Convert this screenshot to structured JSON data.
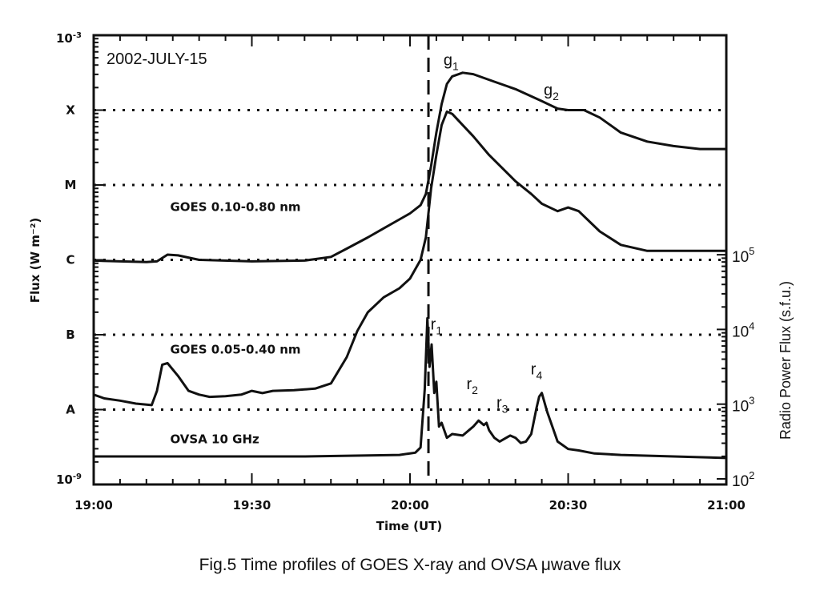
{
  "chart_data": {
    "type": "line",
    "title": "2002-JULY-15",
    "xlabel": "Time (UT)",
    "ylabel": "Flux (W m⁻²)",
    "ylabel_right": "Radio Power Flux (s.f.u.)",
    "x_ticks": [
      "19:00",
      "19:30",
      "20:00",
      "20:30",
      "21:00"
    ],
    "x_range_minutes": [
      0,
      120
    ],
    "y_left_scale": "log",
    "y_left_range": [
      "1e-9",
      "1e-3"
    ],
    "y_left_ticks": [
      {
        "label": "A",
        "value": "1e-8"
      },
      {
        "label": "B",
        "value": "1e-7"
      },
      {
        "label": "C",
        "value": "1e-6"
      },
      {
        "label": "M",
        "value": "1e-5"
      },
      {
        "label": "X",
        "value": "1e-4"
      }
    ],
    "y_left_end_labels": {
      "top_base": "10",
      "top_exp": "-3",
      "bottom_base": "10",
      "bottom_exp": "-9"
    },
    "y_right_scale": "log",
    "y_right_ticks": [
      {
        "base": "10",
        "exp": "2",
        "value": 100
      },
      {
        "base": "10",
        "exp": "3",
        "value": 1000
      },
      {
        "base": "10",
        "exp": "4",
        "value": 10000
      },
      {
        "base": "10",
        "exp": "5",
        "value": 100000
      }
    ],
    "flare_time_minutes": 63.5,
    "grid": "dotted horizontal at class levels A, B, C, M, X",
    "series": [
      {
        "name": "GOES 0.10-0.80 nm",
        "axis": "left",
        "unit": "log10 W m-2",
        "x": [
          0,
          10,
          12,
          14,
          16,
          20,
          30,
          40,
          45,
          48,
          52,
          55,
          58,
          60,
          62,
          63,
          64,
          65,
          66,
          67,
          68,
          70,
          72,
          76,
          80,
          85,
          88,
          90,
          93,
          96,
          100,
          105,
          110,
          115,
          120
        ],
        "y": [
          -6.01,
          -6.03,
          -6.02,
          -5.93,
          -5.94,
          -6.0,
          -6.02,
          -6.01,
          -5.96,
          -5.85,
          -5.7,
          -5.58,
          -5.46,
          -5.38,
          -5.27,
          -5.12,
          -4.75,
          -4.3,
          -3.92,
          -3.65,
          -3.55,
          -3.5,
          -3.52,
          -3.62,
          -3.72,
          -3.88,
          -3.98,
          -4.0,
          -4.0,
          -4.1,
          -4.3,
          -4.42,
          -4.48,
          -4.52,
          -4.52
        ]
      },
      {
        "name": "GOES 0.05-0.40 nm",
        "axis": "left",
        "unit": "log10 W m-2",
        "x": [
          0,
          2,
          5,
          8,
          11,
          12,
          13,
          14,
          16,
          18,
          20,
          22,
          25,
          28,
          30,
          32,
          34,
          38,
          42,
          45,
          48,
          50,
          52,
          55,
          58,
          60,
          62,
          63,
          64,
          65,
          66,
          67,
          68,
          70,
          72,
          75,
          80,
          83,
          85,
          88,
          90,
          92,
          96,
          100,
          105,
          110,
          115,
          120
        ],
        "y": [
          -7.8,
          -7.85,
          -7.88,
          -7.92,
          -7.94,
          -7.75,
          -7.4,
          -7.38,
          -7.55,
          -7.75,
          -7.8,
          -7.83,
          -7.82,
          -7.8,
          -7.75,
          -7.78,
          -7.75,
          -7.74,
          -7.72,
          -7.65,
          -7.3,
          -6.95,
          -6.7,
          -6.5,
          -6.38,
          -6.25,
          -6.0,
          -5.7,
          -5.05,
          -4.6,
          -4.2,
          -4.02,
          -4.05,
          -4.2,
          -4.35,
          -4.6,
          -4.95,
          -5.12,
          -5.25,
          -5.35,
          -5.3,
          -5.35,
          -5.62,
          -5.8,
          -5.88,
          -5.88,
          -5.88,
          -5.88
        ]
      },
      {
        "name": "OVSA 10 GHz",
        "axis": "right",
        "unit": "log10 sfu",
        "x": [
          0,
          20,
          40,
          58,
          61,
          62,
          62.8,
          63.3,
          63.7,
          64.1,
          64.6,
          65.0,
          65.5,
          66,
          67,
          68,
          70,
          72,
          73,
          74,
          74.5,
          75,
          76,
          77,
          79,
          80,
          81,
          82,
          83,
          84,
          84.5,
          85,
          86,
          87,
          88,
          89,
          90,
          92,
          95,
          100,
          110,
          120
        ],
        "y": [
          2.3,
          2.3,
          2.3,
          2.32,
          2.35,
          2.42,
          3.2,
          4.15,
          3.5,
          3.8,
          3.15,
          3.3,
          2.7,
          2.75,
          2.55,
          2.6,
          2.58,
          2.7,
          2.78,
          2.72,
          2.75,
          2.65,
          2.55,
          2.5,
          2.58,
          2.55,
          2.48,
          2.5,
          2.6,
          2.95,
          3.1,
          3.15,
          2.9,
          2.7,
          2.5,
          2.45,
          2.4,
          2.38,
          2.34,
          2.32,
          2.3,
          2.28
        ]
      }
    ],
    "annotations": [
      {
        "base": "g",
        "sub": "1",
        "x_min": 67.8,
        "y_log": -3.4,
        "axis": "left"
      },
      {
        "base": "g",
        "sub": "2",
        "x_min": 86.8,
        "y_log": -3.8,
        "axis": "left"
      },
      {
        "base": "r",
        "sub": "1",
        "x_min": 65.0,
        "y_log": 4.0,
        "axis": "right"
      },
      {
        "base": "r",
        "sub": "2",
        "x_min": 71.8,
        "y_log": 3.2,
        "axis": "right"
      },
      {
        "base": "r",
        "sub": "3",
        "x_min": 77.5,
        "y_log": 2.95,
        "axis": "right"
      },
      {
        "base": "r",
        "sub": "4",
        "x_min": 84.0,
        "y_log": 3.4,
        "axis": "right"
      }
    ],
    "series_labels": [
      {
        "text": "GOES 0.10-0.80 nm",
        "x_min": 14.5,
        "y_log": -5.35,
        "axis": "left"
      },
      {
        "text": "GOES 0.05-0.40 nm",
        "x_min": 14.5,
        "y_log": -7.25,
        "axis": "left"
      },
      {
        "text": "OVSA 10 GHz",
        "x_min": 14.5,
        "y_log": -8.45,
        "axis": "left"
      }
    ]
  },
  "caption": "Fig.5 Time profiles of GOES X-ray and OVSA μwave flux"
}
